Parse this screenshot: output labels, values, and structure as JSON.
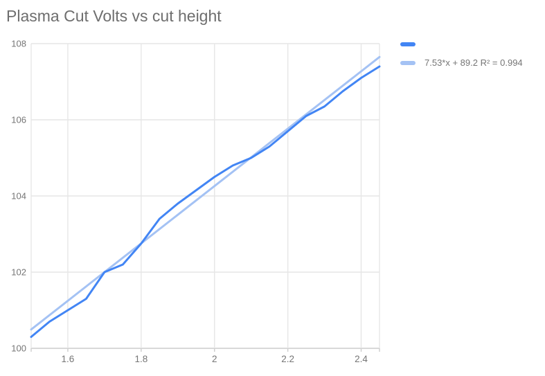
{
  "title": "Plasma Cut Volts vs cut height",
  "colors": {
    "series": "#4285f4",
    "trendline": "#a4c2f4",
    "gridline": "#e6e6e6",
    "axis_line": "#cccccc",
    "tick_label": "#757575",
    "title_text": "#6e6e6e",
    "background": "#ffffff"
  },
  "legend": {
    "series_label": "",
    "trendline_label": "7.53*x + 89.2 R² = 0.994"
  },
  "chart_data": {
    "type": "line",
    "title": "Plasma Cut Volts vs cut height",
    "xlabel": "",
    "ylabel": "",
    "xlim": [
      1.5,
      2.45
    ],
    "ylim": [
      100,
      108
    ],
    "grid": true,
    "legend_position": "right",
    "x_tick_labels": [
      {
        "value": 1.6,
        "label": "1.6"
      },
      {
        "value": 1.8,
        "label": "1.8"
      },
      {
        "value": 2.0,
        "label": "2"
      },
      {
        "value": 2.2,
        "label": "2.2"
      },
      {
        "value": 2.4,
        "label": "2.4"
      }
    ],
    "x_gridlines": [
      1.5,
      1.6,
      1.8,
      2.0,
      2.2,
      2.4,
      2.45
    ],
    "y_tick_labels": [
      {
        "value": 100,
        "label": "100"
      },
      {
        "value": 102,
        "label": "102"
      },
      {
        "value": 104,
        "label": "104"
      },
      {
        "value": 106,
        "label": "106"
      },
      {
        "value": 108,
        "label": "108"
      }
    ],
    "x": [
      1.5,
      1.55,
      1.6,
      1.65,
      1.7,
      1.75,
      1.8,
      1.85,
      1.9,
      1.95,
      2.0,
      2.05,
      2.1,
      2.15,
      2.2,
      2.25,
      2.3,
      2.35,
      2.4,
      2.45
    ],
    "series": [
      {
        "name": "",
        "color": "#4285f4",
        "values": [
          100.3,
          100.7,
          101.0,
          101.3,
          102.0,
          102.2,
          102.75,
          103.4,
          103.8,
          104.15,
          104.5,
          104.8,
          105.0,
          105.3,
          105.7,
          106.1,
          106.35,
          106.75,
          107.1,
          107.4
        ]
      }
    ],
    "trendline": {
      "label": "7.53*x + 89.2 R² = 0.994",
      "slope": 7.53,
      "intercept": 89.2,
      "r2": 0.994,
      "color": "#a4c2f4"
    }
  }
}
